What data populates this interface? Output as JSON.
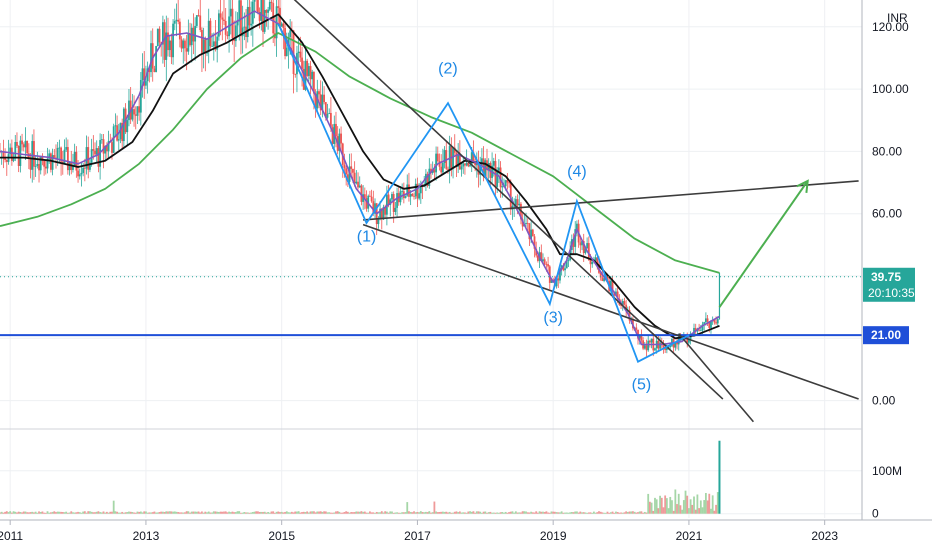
{
  "chart_data": {
    "type": "candlestick",
    "currency": "INR",
    "x_range": [
      2010.85,
      2023.55
    ],
    "x_ticks": [
      2011,
      2013,
      2015,
      2017,
      2019,
      2021,
      2023
    ],
    "x_tick_labels": [
      "2011",
      "2013",
      "2015",
      "2017",
      "2019",
      "2021",
      "2023"
    ],
    "y_range": [
      -8.8,
      128.6
    ],
    "y_ticks": [
      0,
      60,
      80,
      100,
      120
    ],
    "y_tick_labels": [
      "0.00",
      "60.00",
      "80.00",
      "100.00",
      "120.00"
    ],
    "volume_ticks": [
      0,
      100
    ],
    "volume_tick_labels": [
      "0",
      "100M"
    ],
    "volume_range": [
      -10,
      195
    ],
    "price_tag": {
      "value": 39.75,
      "label": "39.75",
      "countdown": "20:10:35",
      "color": "#26a69a"
    },
    "support_level": {
      "value": 21.0,
      "label": "21.00",
      "color": "#1f4fd8"
    },
    "wave_labels": [
      {
        "text": "(1)",
        "x": 2016.25,
        "y": 51.0
      },
      {
        "text": "(2)",
        "x": 2017.45,
        "y": 105.0
      },
      {
        "text": "(3)",
        "x": 2019.0,
        "y": 25.0
      },
      {
        "text": "(4)",
        "x": 2019.35,
        "y": 72.0
      },
      {
        "text": "(5)",
        "x": 2020.3,
        "y": 3.5
      }
    ],
    "wave_path": [
      [
        2014.95,
        121.0
      ],
      [
        2016.25,
        57.0
      ],
      [
        2017.45,
        95.5
      ],
      [
        2018.95,
        31.0
      ],
      [
        2019.35,
        64.0
      ],
      [
        2020.25,
        12.5
      ],
      [
        2021.0,
        21.0
      ]
    ],
    "trendlines": [
      {
        "x1": 2013.55,
        "y1": 162.0,
        "x2": 2021.5,
        "y2": 0.5
      },
      {
        "x1": 2016.2,
        "y1": 56.5,
        "x2": 2023.5,
        "y2": 0.5
      },
      {
        "x1": 2016.2,
        "y1": 58.0,
        "x2": 2023.5,
        "y2": 70.5
      },
      {
        "x1": 2020.85,
        "y1": 21.5,
        "x2": 2021.95,
        "y2": -6.8
      }
    ],
    "projection": [
      [
        2021.45,
        30.0
      ],
      [
        2022.75,
        70.5
      ]
    ],
    "ma_fast": [
      [
        2010.85,
        80
      ],
      [
        2011.2,
        79
      ],
      [
        2011.6,
        78
      ],
      [
        2012.0,
        76
      ],
      [
        2012.3,
        79
      ],
      [
        2012.6,
        86
      ],
      [
        2012.9,
        98
      ],
      [
        2013.1,
        110
      ],
      [
        2013.3,
        117
      ],
      [
        2013.6,
        118
      ],
      [
        2013.9,
        116
      ],
      [
        2014.2,
        120
      ],
      [
        2014.6,
        125
      ],
      [
        2014.95,
        121
      ],
      [
        2015.2,
        110
      ],
      [
        2015.5,
        98
      ],
      [
        2015.8,
        84
      ],
      [
        2016.1,
        68
      ],
      [
        2016.4,
        60
      ],
      [
        2016.7,
        65
      ],
      [
        2017.0,
        68
      ],
      [
        2017.3,
        76
      ],
      [
        2017.6,
        79
      ],
      [
        2017.9,
        76
      ],
      [
        2018.2,
        72
      ],
      [
        2018.5,
        60
      ],
      [
        2018.8,
        46
      ],
      [
        2019.0,
        38
      ],
      [
        2019.2,
        45
      ],
      [
        2019.35,
        55
      ],
      [
        2019.5,
        48
      ],
      [
        2019.8,
        38
      ],
      [
        2020.1,
        28
      ],
      [
        2020.3,
        18
      ],
      [
        2020.6,
        18
      ],
      [
        2020.9,
        19
      ],
      [
        2021.2,
        24
      ],
      [
        2021.45,
        27
      ]
    ],
    "ma_mid": [
      [
        2010.85,
        78
      ],
      [
        2011.2,
        78
      ],
      [
        2011.6,
        77
      ],
      [
        2012.0,
        75
      ],
      [
        2012.4,
        77
      ],
      [
        2012.8,
        83
      ],
      [
        2013.1,
        93
      ],
      [
        2013.4,
        105
      ],
      [
        2013.8,
        111
      ],
      [
        2014.2,
        115
      ],
      [
        2014.6,
        120
      ],
      [
        2014.95,
        124
      ],
      [
        2015.3,
        115
      ],
      [
        2015.6,
        104
      ],
      [
        2015.9,
        92
      ],
      [
        2016.2,
        80
      ],
      [
        2016.5,
        71
      ],
      [
        2016.8,
        68
      ],
      [
        2017.1,
        69
      ],
      [
        2017.4,
        73
      ],
      [
        2017.7,
        77
      ],
      [
        2018.0,
        76
      ],
      [
        2018.3,
        72
      ],
      [
        2018.6,
        64
      ],
      [
        2018.9,
        55
      ],
      [
        2019.1,
        47
      ],
      [
        2019.35,
        47
      ],
      [
        2019.6,
        45
      ],
      [
        2019.9,
        38
      ],
      [
        2020.2,
        30
      ],
      [
        2020.5,
        24
      ],
      [
        2020.8,
        20
      ],
      [
        2021.1,
        21
      ],
      [
        2021.45,
        24
      ]
    ],
    "ma_slow": [
      [
        2010.85,
        56
      ],
      [
        2011.4,
        59
      ],
      [
        2011.9,
        63
      ],
      [
        2012.4,
        68
      ],
      [
        2012.9,
        76
      ],
      [
        2013.4,
        87
      ],
      [
        2013.9,
        100
      ],
      [
        2014.4,
        110
      ],
      [
        2014.95,
        118
      ],
      [
        2015.5,
        112
      ],
      [
        2016.0,
        104
      ],
      [
        2016.6,
        97
      ],
      [
        2017.2,
        91
      ],
      [
        2017.8,
        86
      ],
      [
        2018.4,
        79
      ],
      [
        2019.0,
        72
      ],
      [
        2019.6,
        62
      ],
      [
        2020.2,
        52
      ],
      [
        2020.8,
        45
      ],
      [
        2021.45,
        41
      ]
    ]
  }
}
